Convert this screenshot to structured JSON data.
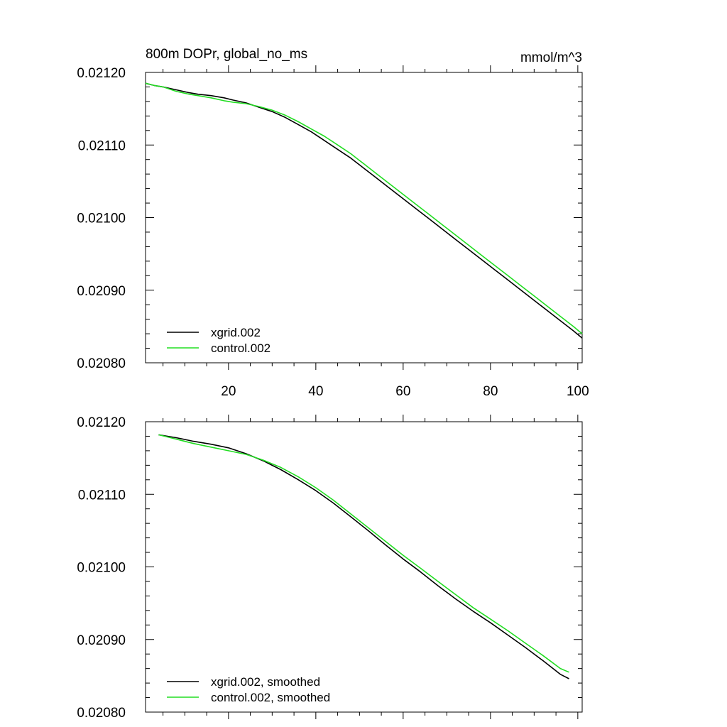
{
  "colors": {
    "xgrid": "#000000",
    "control": "#22dd22",
    "axis": "#000000"
  },
  "chart_data": [
    {
      "type": "line",
      "title": "800m DOPr, global_no_ms",
      "units": "mmol/m^3",
      "xlabel": "",
      "ylabel": "",
      "xlim": [
        1,
        101
      ],
      "ylim": [
        0.0208,
        0.0212
      ],
      "xticks": [
        20,
        40,
        60,
        80,
        100
      ],
      "xtick_labels": [
        "20",
        "40",
        "60",
        "80",
        "100"
      ],
      "yticks": [
        0.0208,
        0.0209,
        0.021,
        0.0211,
        0.0212
      ],
      "ytick_labels": [
        "0.02080",
        "0.02090",
        "0.02100",
        "0.02110",
        "0.02120"
      ],
      "legend_position": "bottom-left",
      "series": [
        {
          "name": "xgrid.002",
          "color": "#000000",
          "points": [
            [
              1,
              0.021185
            ],
            [
              3,
              0.021182
            ],
            [
              5,
              0.02118
            ],
            [
              8,
              0.021176
            ],
            [
              11,
              0.021172
            ],
            [
              13,
              0.02117
            ],
            [
              16,
              0.021168
            ],
            [
              19,
              0.021165
            ],
            [
              21,
              0.021162
            ],
            [
              24,
              0.021158
            ],
            [
              27,
              0.021152
            ],
            [
              30,
              0.021146
            ],
            [
              33,
              0.021138
            ],
            [
              36,
              0.021128
            ],
            [
              39,
              0.021118
            ],
            [
              42,
              0.021106
            ],
            [
              45,
              0.021094
            ],
            [
              48,
              0.021082
            ],
            [
              51,
              0.021068
            ],
            [
              54,
              0.021054
            ],
            [
              57,
              0.02104
            ],
            [
              60,
              0.021026
            ],
            [
              63,
              0.021012
            ],
            [
              66,
              0.020998
            ],
            [
              69,
              0.020984
            ],
            [
              72,
              0.02097
            ],
            [
              75,
              0.020956
            ],
            [
              78,
              0.020942
            ],
            [
              81,
              0.020928
            ],
            [
              84,
              0.020914
            ],
            [
              87,
              0.0209
            ],
            [
              90,
              0.020886
            ],
            [
              93,
              0.020872
            ],
            [
              96,
              0.020858
            ],
            [
              99,
              0.020844
            ],
            [
              101,
              0.020834
            ]
          ]
        },
        {
          "name": "control.002",
          "color": "#22dd22",
          "points": [
            [
              1,
              0.021185
            ],
            [
              3,
              0.021182
            ],
            [
              5,
              0.02118
            ],
            [
              8,
              0.021174
            ],
            [
              11,
              0.02117
            ],
            [
              13,
              0.021168
            ],
            [
              16,
              0.021165
            ],
            [
              19,
              0.021161
            ],
            [
              21,
              0.021159
            ],
            [
              24,
              0.021157
            ],
            [
              27,
              0.021153
            ],
            [
              30,
              0.021148
            ],
            [
              33,
              0.021141
            ],
            [
              36,
              0.021132
            ],
            [
              39,
              0.021122
            ],
            [
              42,
              0.021112
            ],
            [
              45,
              0.0211
            ],
            [
              48,
              0.021088
            ],
            [
              51,
              0.021074
            ],
            [
              54,
              0.02106
            ],
            [
              57,
              0.021046
            ],
            [
              60,
              0.021032
            ],
            [
              63,
              0.021018
            ],
            [
              66,
              0.021004
            ],
            [
              69,
              0.02099
            ],
            [
              72,
              0.020976
            ],
            [
              75,
              0.020962
            ],
            [
              78,
              0.020948
            ],
            [
              81,
              0.020934
            ],
            [
              84,
              0.02092
            ],
            [
              87,
              0.020906
            ],
            [
              90,
              0.020892
            ],
            [
              93,
              0.020878
            ],
            [
              96,
              0.020864
            ],
            [
              99,
              0.02085
            ],
            [
              101,
              0.02084
            ]
          ]
        }
      ]
    },
    {
      "type": "line",
      "title": "",
      "xlabel": "",
      "ylabel": "",
      "xlim": [
        1,
        101
      ],
      "ylim": [
        0.0208,
        0.0212
      ],
      "xticks": [
        20,
        40,
        60,
        80,
        100
      ],
      "xtick_labels": [],
      "yticks": [
        0.0208,
        0.0209,
        0.021,
        0.0211,
        0.0212
      ],
      "ytick_labels": [
        "0.02080",
        "0.02090",
        "0.02100",
        "0.02110",
        "0.02120"
      ],
      "legend_position": "bottom-left",
      "series": [
        {
          "name": "xgrid.002, smoothed",
          "color": "#000000",
          "points": [
            [
              4,
              0.021182
            ],
            [
              8,
              0.021178
            ],
            [
              12,
              0.021173
            ],
            [
              16,
              0.021169
            ],
            [
              20,
              0.021164
            ],
            [
              24,
              0.021156
            ],
            [
              28,
              0.021146
            ],
            [
              32,
              0.021134
            ],
            [
              36,
              0.02112
            ],
            [
              40,
              0.021105
            ],
            [
              44,
              0.021088
            ],
            [
              48,
              0.021069
            ],
            [
              52,
              0.02105
            ],
            [
              56,
              0.02103
            ],
            [
              60,
              0.021011
            ],
            [
              64,
              0.020993
            ],
            [
              68,
              0.020974
            ],
            [
              72,
              0.020956
            ],
            [
              76,
              0.020939
            ],
            [
              80,
              0.020923
            ],
            [
              84,
              0.020906
            ],
            [
              88,
              0.020889
            ],
            [
              92,
              0.020871
            ],
            [
              96,
              0.020852
            ],
            [
              98,
              0.020846
            ]
          ]
        },
        {
          "name": "control.002, smoothed",
          "color": "#22dd22",
          "points": [
            [
              4,
              0.021182
            ],
            [
              8,
              0.021176
            ],
            [
              12,
              0.02117
            ],
            [
              16,
              0.021165
            ],
            [
              20,
              0.02116
            ],
            [
              24,
              0.021155
            ],
            [
              28,
              0.021147
            ],
            [
              32,
              0.021137
            ],
            [
              36,
              0.021124
            ],
            [
              40,
              0.021109
            ],
            [
              44,
              0.021092
            ],
            [
              48,
              0.021073
            ],
            [
              52,
              0.021054
            ],
            [
              56,
              0.021035
            ],
            [
              60,
              0.021016
            ],
            [
              64,
              0.020998
            ],
            [
              68,
              0.02098
            ],
            [
              72,
              0.020962
            ],
            [
              76,
              0.020944
            ],
            [
              80,
              0.020928
            ],
            [
              84,
              0.020912
            ],
            [
              88,
              0.020895
            ],
            [
              92,
              0.020878
            ],
            [
              96,
              0.02086
            ],
            [
              98,
              0.020855
            ]
          ]
        }
      ]
    }
  ]
}
